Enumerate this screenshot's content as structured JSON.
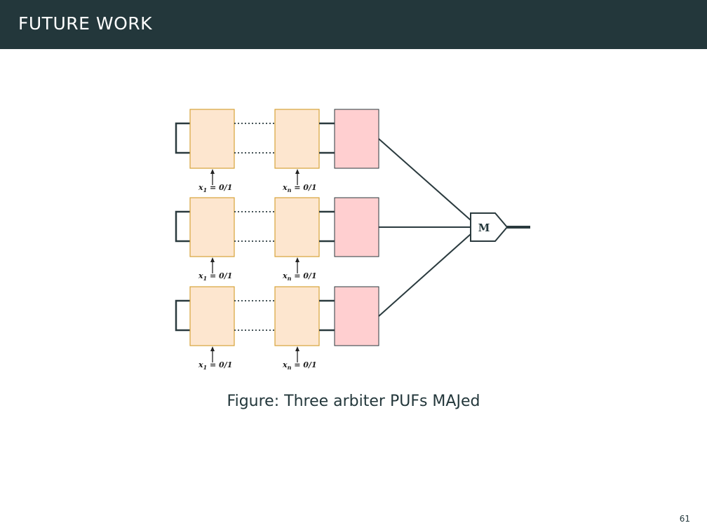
{
  "header": {
    "title": "FUTURE WORK"
  },
  "figure": {
    "caption_prefix": "Figure:",
    "caption_text": "Three arbiter PUFs MAJed",
    "majority_label": "M",
    "rows": [
      {
        "first_label": {
          "var": "x",
          "sub": "1",
          "rest": " = 0/1"
        },
        "last_label": {
          "var": "x",
          "sub": "n",
          "rest": " = 0/1"
        }
      },
      {
        "first_label": {
          "var": "x",
          "sub": "1",
          "rest": " = 0/1"
        },
        "last_label": {
          "var": "x",
          "sub": "n",
          "rest": " = 0/1"
        }
      },
      {
        "first_label": {
          "var": "x",
          "sub": "1",
          "rest": " = 0/1"
        },
        "last_label": {
          "var": "x",
          "sub": "n",
          "rest": " = 0/1"
        }
      }
    ],
    "colors": {
      "stage_fill": "#fde6cf",
      "stage_stroke": "#d7a43a",
      "arbiter_fill": "#ffcfd0",
      "line": "#2a3a3e"
    }
  },
  "page_number": "61"
}
